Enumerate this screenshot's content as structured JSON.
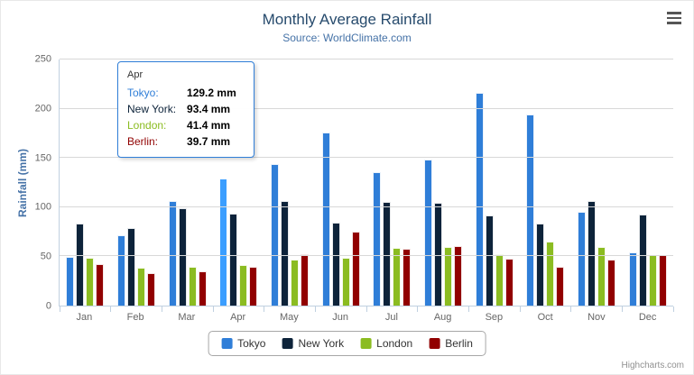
{
  "credits": "Highcharts.com",
  "chart_data": {
    "type": "bar",
    "title": "Monthly Average Rainfall",
    "subtitle": "Source: WorldClimate.com",
    "categories": [
      "Jan",
      "Feb",
      "Mar",
      "Apr",
      "May",
      "Jun",
      "Jul",
      "Aug",
      "Sep",
      "Oct",
      "Nov",
      "Dec"
    ],
    "series": [
      {
        "name": "Tokyo",
        "color": "#2f7ed8",
        "values": [
          49.9,
          71.5,
          106.4,
          129.2,
          144.0,
          176.0,
          135.6,
          148.5,
          216.4,
          194.1,
          95.6,
          54.4
        ]
      },
      {
        "name": "New York",
        "color": "#0d233a",
        "values": [
          83.6,
          78.8,
          98.5,
          93.4,
          106.0,
          84.5,
          105.0,
          104.3,
          91.2,
          83.5,
          106.6,
          92.3
        ]
      },
      {
        "name": "London",
        "color": "#8bbc21",
        "values": [
          48.9,
          38.8,
          39.3,
          41.4,
          47.0,
          48.3,
          59.0,
          59.6,
          52.4,
          65.2,
          59.3,
          51.2
        ]
      },
      {
        "name": "Berlin",
        "color": "#910000",
        "values": [
          42.4,
          33.2,
          34.5,
          39.7,
          52.6,
          75.5,
          57.4,
          60.4,
          47.6,
          39.1,
          46.8,
          51.1
        ]
      }
    ],
    "xlabel": "",
    "ylabel": "Rainfall (mm)",
    "ylim": [
      0,
      250
    ],
    "yticks": [
      0,
      50,
      100,
      150,
      200,
      250
    ],
    "grid": true,
    "legend_position": "bottom"
  },
  "highlighted_point": {
    "series": "Tokyo",
    "category": "Apr"
  },
  "tooltip": {
    "header": "Apr",
    "rows": [
      {
        "name": "Tokyo",
        "color": "#2f7ed8",
        "value": "129.2 mm"
      },
      {
        "name": "New York",
        "color": "#0d233a",
        "value": "93.4 mm"
      },
      {
        "name": "London",
        "color": "#8bbc21",
        "value": "41.4 mm"
      },
      {
        "name": "Berlin",
        "color": "#910000",
        "value": "39.7 mm"
      }
    ]
  }
}
